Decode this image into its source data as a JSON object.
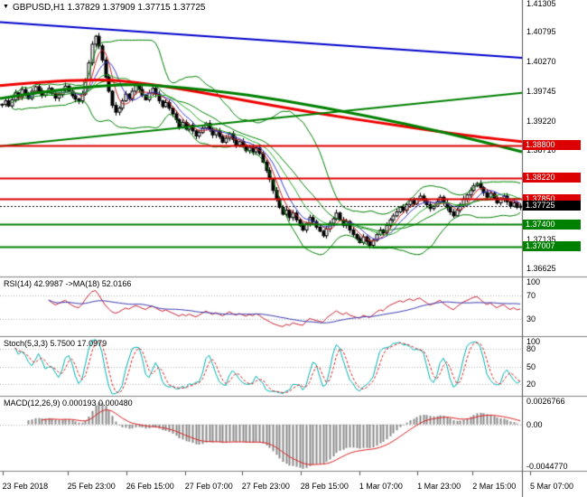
{
  "header": {
    "symbol_line": "GBPUSD,H1 1.37829 1.37909 1.37715 1.37725",
    "dropdown_icon": "▼"
  },
  "chart_data": {
    "type": "candlestick",
    "symbol": "GBPUSD",
    "timeframe": "H1",
    "ohlc": {
      "open": "1.37829",
      "high": "1.37909",
      "low": "1.37715",
      "close": "1.37725"
    },
    "price_axis": {
      "max": 1.4136,
      "min": 1.3648,
      "plain_ticks": [
        "1.41305",
        "1.40795",
        "1.40270",
        "1.39745",
        "1.39220",
        "1.38710",
        "1.37135",
        "1.36625"
      ]
    },
    "closes": [
      1.3952,
      1.3958,
      1.3949,
      1.396,
      1.3972,
      1.3965,
      1.3978,
      1.397,
      1.3962,
      1.3975,
      1.3983,
      1.3976,
      1.3968,
      1.3973,
      1.398,
      1.3971,
      1.3963,
      1.3969,
      1.3977,
      1.3984,
      1.3975,
      1.3967,
      1.3961,
      1.3958,
      1.397,
      1.3995,
      1.4025,
      1.4058,
      1.4072,
      1.4055,
      1.403,
      1.4,
      1.3975,
      1.395,
      1.3938,
      1.3945,
      1.3958,
      1.397,
      1.3962,
      1.3975,
      1.3985,
      1.3978,
      1.3968,
      1.396,
      1.3972,
      1.398,
      1.397,
      1.3958,
      1.3948,
      1.3955,
      1.3945,
      1.3935,
      1.3925,
      1.3912,
      1.392,
      1.3908,
      1.3915,
      1.3905,
      1.3896,
      1.3902,
      1.391,
      1.3918,
      1.3908,
      1.3898,
      1.3905,
      1.3895,
      1.3885,
      1.3892,
      1.39,
      1.389,
      1.388,
      1.3886,
      1.3878,
      1.387,
      1.3876,
      1.3868,
      1.3875,
      1.3865,
      1.385,
      1.3835,
      1.382,
      1.38,
      1.3785,
      1.377,
      1.3758,
      1.3765,
      1.3752,
      1.376,
      1.3748,
      1.3738,
      1.373,
      1.3742,
      1.3752,
      1.3745,
      1.3735,
      1.3728,
      1.372,
      1.3732,
      1.3742,
      1.375,
      1.376,
      1.3748,
      1.3738,
      1.3745,
      1.373,
      1.3722,
      1.3715,
      1.3708,
      1.3718,
      1.371,
      1.3703,
      1.3712,
      1.3722,
      1.373,
      1.3725,
      1.3738,
      1.3748,
      1.3755,
      1.3762,
      1.377,
      1.3765,
      1.3775,
      1.3782,
      1.3776,
      1.3785,
      1.379,
      1.3782,
      1.3775,
      1.3768,
      1.3772,
      1.378,
      1.3788,
      1.3778,
      1.377,
      1.3762,
      1.3755,
      1.3765,
      1.3775,
      1.3785,
      1.3792,
      1.38,
      1.3808,
      1.3812,
      1.3805,
      1.3796,
      1.3788,
      1.3795,
      1.3786,
      1.3778,
      1.3785,
      1.379,
      1.378,
      1.3772,
      1.3778,
      1.377,
      1.37725
    ],
    "wick_base": 0.0006,
    "levels": [
      {
        "price": 1.388,
        "label": "1.38800",
        "color": "#dd0000",
        "kind": "resistance"
      },
      {
        "price": 1.3822,
        "label": "1.38220",
        "color": "#dd0000",
        "kind": "resistance"
      },
      {
        "price": 1.3785,
        "label": "1.37850",
        "color": "#dd0000",
        "kind": "resistance"
      },
      {
        "price": 1.374,
        "label": "1.37400",
        "color": "#008000",
        "kind": "support"
      },
      {
        "price": 1.37007,
        "label": "1.37007",
        "color": "#008000",
        "kind": "support"
      }
    ],
    "current_price": {
      "price": 1.37725,
      "label": "1.37725",
      "box_color": "#000000"
    },
    "trend_lines": [
      {
        "name": "descending-blue-trendline",
        "color": "#0000cc",
        "width": 2,
        "points": [
          [
            0,
            1.4097
          ],
          [
            1,
            1.4034
          ]
        ]
      },
      {
        "name": "ascending-green-trendline",
        "color": "#008000",
        "width": 2,
        "points": [
          [
            0,
            1.3878
          ],
          [
            1,
            1.3972
          ]
        ]
      }
    ],
    "ma_curves": [
      {
        "name": "slow-ma-red",
        "color": "#ee0000",
        "width": 3,
        "points": [
          [
            0,
            1.3985
          ],
          [
            0.17,
            1.3999
          ],
          [
            0.3,
            1.3987
          ],
          [
            0.45,
            1.3962
          ],
          [
            0.6,
            1.3937
          ],
          [
            0.75,
            1.3916
          ],
          [
            0.9,
            1.3896
          ],
          [
            1,
            1.3886
          ]
        ]
      },
      {
        "name": "slow-ma-green",
        "color": "#008000",
        "width": 3,
        "points": [
          [
            0,
            1.3962
          ],
          [
            0.2,
            1.3992
          ],
          [
            0.4,
            1.3978
          ],
          [
            0.55,
            1.3958
          ],
          [
            0.7,
            1.3932
          ],
          [
            0.85,
            1.3903
          ],
          [
            1,
            1.3868
          ]
        ]
      }
    ],
    "overlays": {
      "bollinger": {
        "period": 20,
        "deviation": 2,
        "color": "#008000"
      },
      "fan_mas": [
        {
          "period": 5,
          "color": "#cc2222"
        },
        {
          "period": 8,
          "color": "#3a3acc"
        },
        {
          "period": 13,
          "color": "#22aa22"
        }
      ]
    },
    "x_labels": [
      {
        "text": "23 Feb 2018",
        "pos": 0.004
      },
      {
        "text": "25 Feb 23:00",
        "pos": 0.115
      },
      {
        "text": "26 Feb 15:00",
        "pos": 0.215
      },
      {
        "text": "27 Feb 07:00",
        "pos": 0.315
      },
      {
        "text": "27 Feb 23:00",
        "pos": 0.412
      },
      {
        "text": "28 Feb 15:00",
        "pos": 0.512
      },
      {
        "text": "1 Mar 07:00",
        "pos": 0.612
      },
      {
        "text": "1 Mar 23:00",
        "pos": 0.711
      },
      {
        "text": "2 Mar 15:00",
        "pos": 0.805
      },
      {
        "text": "5 Mar 07:00",
        "pos": 0.903
      }
    ],
    "panels": [
      {
        "id": "rsi",
        "label": "RSI(14) 42.9987 ->MA(18) 52.0166",
        "period": 14,
        "ma_period": 18,
        "line_color": "#cc2233",
        "ma_color": "#3b3bb0",
        "range": [
          0,
          100
        ],
        "grid": [
          30,
          70
        ],
        "ticks": [
          {
            "v": 100,
            "text": "100"
          },
          {
            "v": 70,
            "text": "70"
          },
          {
            "v": 30,
            "text": "30"
          }
        ]
      },
      {
        "id": "stoch",
        "label": "Stoch(5,3,3) 5.7500 17.0979",
        "k_period": 5,
        "slowing": 3,
        "d_period": 3,
        "k_color": "#00b3b3",
        "d_color": "#dd2222",
        "range": [
          0,
          100
        ],
        "grid": [
          20,
          50,
          80
        ],
        "ticks": [
          {
            "v": 100,
            "text": "100"
          },
          {
            "v": 80,
            "text": "80"
          },
          {
            "v": 50,
            "text": "50"
          },
          {
            "v": 20,
            "text": "20"
          }
        ]
      },
      {
        "id": "macd",
        "label": "MACD(12,26,9) 0.000193 0.000480",
        "fast": 12,
        "slow": 26,
        "signal": 9,
        "hist_color": "#8a8a8a",
        "signal_color": "#dd2222",
        "range": [
          -0.0045,
          0.0027
        ],
        "grid": [
          0
        ],
        "ticks": [
          {
            "v": 0.0027,
            "text": "0.0026766"
          },
          {
            "v": 0,
            "text": "0.00"
          },
          {
            "v": -0.0044,
            "text": "-0.0044770"
          }
        ]
      }
    ],
    "colors": {
      "background": "#ffffff",
      "candle_up": "#ffffff",
      "candle_down": "#000000",
      "candle_outline": "#000000",
      "separator": "#808080",
      "axis_line": "#555555",
      "text": "#000000"
    }
  }
}
